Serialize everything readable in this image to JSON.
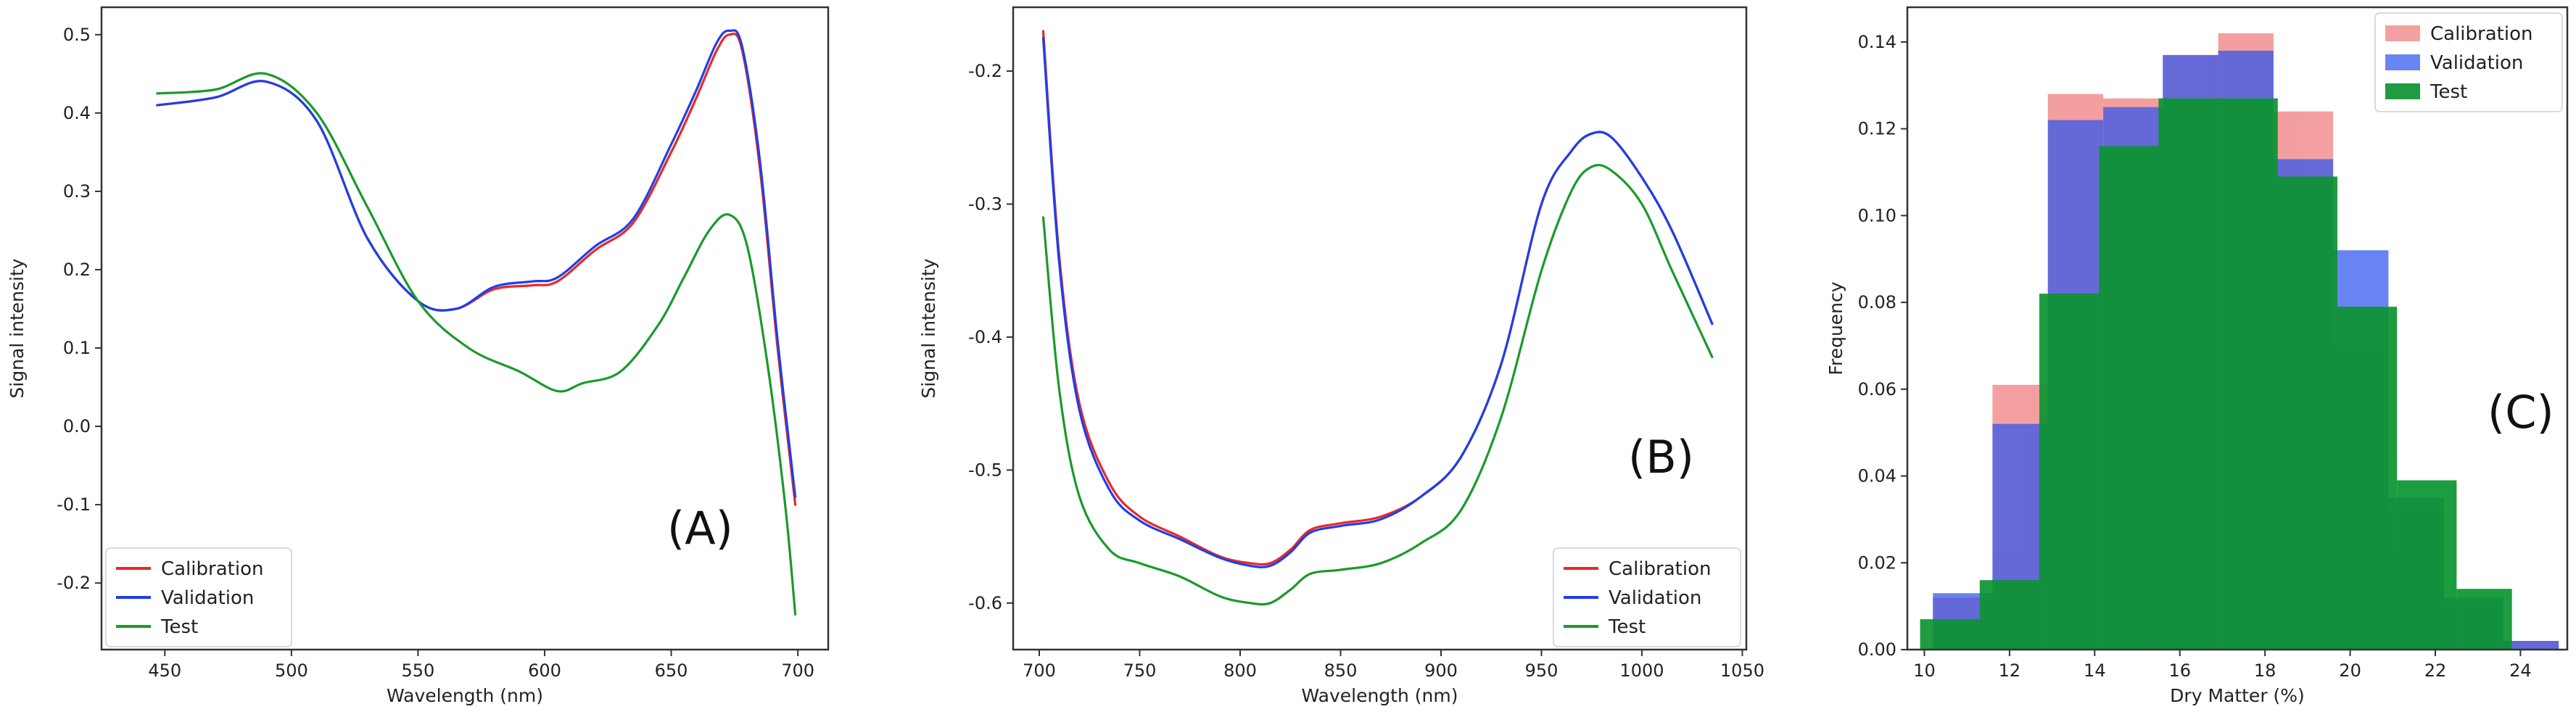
{
  "chart_data": [
    {
      "type": "line",
      "panel_label": "(A)",
      "xlabel": "Wavelength (nm)",
      "ylabel": "Signal intensity",
      "xlim": [
        425,
        712
      ],
      "ylim": [
        -0.285,
        0.535
      ],
      "xticks": [
        450,
        500,
        550,
        600,
        650,
        700
      ],
      "yticks": [
        -0.2,
        -0.1,
        0.0,
        0.1,
        0.2,
        0.3,
        0.4,
        0.5
      ],
      "tick_precision": 1,
      "legend": "lower-left",
      "colors": [
        "#e8282a",
        "#1f3fe8",
        "#1a9a2a"
      ],
      "series": [
        {
          "name": "Calibration",
          "x": [
            447,
            470,
            490,
            510,
            530,
            550,
            565,
            580,
            595,
            605,
            620,
            635,
            650,
            660,
            668,
            673,
            678,
            685,
            692,
            699
          ],
          "y": [
            0.41,
            0.42,
            0.44,
            0.39,
            0.24,
            0.16,
            0.15,
            0.175,
            0.18,
            0.185,
            0.225,
            0.26,
            0.35,
            0.42,
            0.48,
            0.5,
            0.48,
            0.33,
            0.1,
            -0.1
          ]
        },
        {
          "name": "Validation",
          "x": [
            447,
            470,
            490,
            510,
            530,
            550,
            565,
            580,
            595,
            605,
            620,
            635,
            650,
            660,
            668,
            673,
            678,
            685,
            692,
            699
          ],
          "y": [
            0.41,
            0.42,
            0.44,
            0.39,
            0.24,
            0.16,
            0.15,
            0.178,
            0.185,
            0.19,
            0.23,
            0.265,
            0.36,
            0.43,
            0.49,
            0.505,
            0.485,
            0.34,
            0.11,
            -0.09
          ]
        },
        {
          "name": "Test",
          "x": [
            447,
            470,
            490,
            510,
            530,
            550,
            570,
            590,
            605,
            615,
            630,
            645,
            655,
            665,
            673,
            680,
            688,
            695,
            699
          ],
          "y": [
            0.425,
            0.43,
            0.45,
            0.4,
            0.28,
            0.16,
            0.1,
            0.07,
            0.045,
            0.055,
            0.07,
            0.13,
            0.19,
            0.25,
            0.27,
            0.23,
            0.08,
            -0.1,
            -0.24
          ]
        }
      ]
    },
    {
      "type": "line",
      "panel_label": "(B)",
      "xlabel": "Wavelength (nm)",
      "ylabel": "Signal intensity",
      "xlim": [
        687,
        1052
      ],
      "ylim": [
        -0.635,
        -0.152
      ],
      "xticks": [
        700,
        750,
        800,
        850,
        900,
        950,
        1000,
        1050
      ],
      "yticks": [
        -0.6,
        -0.5,
        -0.4,
        -0.3,
        -0.2
      ],
      "tick_precision": 1,
      "legend": "lower-right",
      "colors": [
        "#e8282a",
        "#1f3fe8",
        "#1a9a2a"
      ],
      "series": [
        {
          "name": "Calibration",
          "x": [
            702,
            710,
            720,
            735,
            750,
            770,
            790,
            805,
            815,
            825,
            835,
            850,
            870,
            890,
            910,
            930,
            950,
            965,
            975,
            985,
            1000,
            1015,
            1035
          ],
          "y": [
            -0.17,
            -0.34,
            -0.45,
            -0.51,
            -0.535,
            -0.55,
            -0.565,
            -0.57,
            -0.57,
            -0.56,
            -0.545,
            -0.54,
            -0.535,
            -0.52,
            -0.49,
            -0.42,
            -0.3,
            -0.26,
            -0.247,
            -0.25,
            -0.28,
            -0.32,
            -0.39
          ]
        },
        {
          "name": "Validation",
          "x": [
            702,
            710,
            720,
            735,
            750,
            770,
            790,
            805,
            815,
            825,
            835,
            850,
            870,
            890,
            910,
            930,
            950,
            965,
            975,
            985,
            1000,
            1015,
            1035
          ],
          "y": [
            -0.175,
            -0.345,
            -0.455,
            -0.515,
            -0.538,
            -0.552,
            -0.566,
            -0.572,
            -0.572,
            -0.562,
            -0.547,
            -0.542,
            -0.537,
            -0.52,
            -0.49,
            -0.42,
            -0.3,
            -0.26,
            -0.247,
            -0.25,
            -0.28,
            -0.32,
            -0.39
          ]
        },
        {
          "name": "Test",
          "x": [
            702,
            710,
            720,
            735,
            750,
            770,
            790,
            805,
            815,
            825,
            835,
            850,
            870,
            890,
            910,
            930,
            950,
            965,
            975,
            985,
            1000,
            1015,
            1035
          ],
          "y": [
            -0.31,
            -0.44,
            -0.52,
            -0.56,
            -0.57,
            -0.58,
            -0.595,
            -0.6,
            -0.6,
            -0.59,
            -0.578,
            -0.575,
            -0.57,
            -0.555,
            -0.53,
            -0.46,
            -0.35,
            -0.29,
            -0.272,
            -0.275,
            -0.3,
            -0.35,
            -0.415
          ]
        }
      ]
    },
    {
      "type": "histogram",
      "panel_label": "(C)",
      "xlabel": "Dry Matter (%)",
      "ylabel": "Frequency",
      "xlim": [
        9.6,
        25.1
      ],
      "ylim": [
        0,
        0.148
      ],
      "xticks": [
        10,
        12,
        14,
        16,
        18,
        20,
        22,
        24
      ],
      "yticks": [
        0.0,
        0.02,
        0.04,
        0.06,
        0.08,
        0.1,
        0.12,
        0.14
      ],
      "tick_precision": 2,
      "legend": "top-right",
      "colors": [
        "#f08080",
        "#2f55ee",
        "#0c9430"
      ],
      "opacity": [
        0.75,
        0.72,
        0.92
      ],
      "series": [
        {
          "name": "Calibration",
          "bins": [
            [
              10.2,
              11.6,
              0.012
            ],
            [
              11.6,
              12.9,
              0.061
            ],
            [
              12.9,
              14.2,
              0.128
            ],
            [
              14.2,
              15.6,
              0.127
            ],
            [
              15.6,
              16.9,
              0.137
            ],
            [
              16.9,
              18.2,
              0.142
            ],
            [
              18.2,
              19.6,
              0.124
            ],
            [
              19.6,
              20.9,
              0.07
            ],
            [
              20.9,
              22.2,
              0.032
            ],
            [
              22.2,
              23.6,
              0.011
            ],
            [
              23.6,
              24.9,
              0.002
            ]
          ]
        },
        {
          "name": "Validation",
          "bins": [
            [
              10.2,
              11.6,
              0.013
            ],
            [
              11.6,
              12.9,
              0.052
            ],
            [
              12.9,
              14.2,
              0.122
            ],
            [
              14.2,
              15.6,
              0.125
            ],
            [
              15.6,
              16.9,
              0.137
            ],
            [
              16.9,
              18.2,
              0.138
            ],
            [
              18.2,
              19.6,
              0.113
            ],
            [
              19.6,
              20.9,
              0.092
            ],
            [
              20.9,
              22.2,
              0.035
            ],
            [
              22.2,
              23.6,
              0.012
            ],
            [
              23.6,
              24.9,
              0.002
            ]
          ]
        },
        {
          "name": "Test",
          "bins": [
            [
              9.9,
              11.3,
              0.007
            ],
            [
              11.3,
              12.7,
              0.016
            ],
            [
              12.7,
              14.1,
              0.082
            ],
            [
              14.1,
              15.5,
              0.116
            ],
            [
              15.5,
              16.9,
              0.127
            ],
            [
              16.9,
              18.3,
              0.127
            ],
            [
              18.3,
              19.7,
              0.109
            ],
            [
              19.7,
              21.1,
              0.079
            ],
            [
              21.1,
              22.5,
              0.039
            ],
            [
              22.5,
              23.8,
              0.014
            ]
          ]
        }
      ]
    }
  ]
}
